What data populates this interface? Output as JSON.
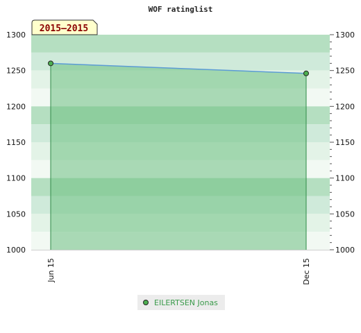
{
  "chart_data": {
    "type": "line",
    "title": "WOF ratinglist",
    "period_label": "2015–2015",
    "x": [
      "Jun 15",
      "Dec 15"
    ],
    "series": [
      {
        "name": "EILERTSEN Jonas",
        "values": [
          1260,
          1246
        ],
        "color": "#5b9bd5",
        "marker_color": "#4caf50"
      }
    ],
    "ylim": [
      1000,
      1300
    ],
    "yticks": [
      1000,
      1050,
      1100,
      1150,
      1200,
      1250,
      1300
    ],
    "y_axis": "both sides",
    "legend_position": "bottom-center",
    "fill_color": "#6dbf82",
    "band_colors": [
      "#b5dfc1",
      "#cfeada",
      "#e3f3e7",
      "#f2f9f3",
      "#b5dfc1",
      "#cfeada",
      "#e3f3e7",
      "#f2f9f3"
    ]
  }
}
